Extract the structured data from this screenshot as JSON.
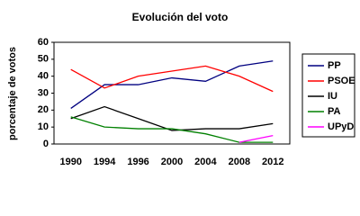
{
  "chart_data": {
    "type": "line",
    "title": "Evolución del voto",
    "y_label": "porcentaje de votos",
    "categories": [
      "1990",
      "1994",
      "1996",
      "2000",
      "2004",
      "2008",
      "2012"
    ],
    "series": [
      {
        "name": "PP",
        "color": "#000080",
        "values": [
          21,
          35,
          35,
          39,
          37,
          46,
          49
        ]
      },
      {
        "name": "PSOE",
        "color": "#ff0000",
        "values": [
          44,
          33,
          40,
          43,
          46,
          40,
          31
        ]
      },
      {
        "name": "IU",
        "color": "#000000",
        "values": [
          15,
          22,
          15,
          8,
          9,
          9,
          12
        ]
      },
      {
        "name": "PA",
        "color": "#008000",
        "values": [
          16,
          10,
          9,
          9,
          6,
          1,
          1
        ]
      },
      {
        "name": "UPyD",
        "color": "#ff00ff",
        "values": [
          null,
          null,
          null,
          null,
          null,
          1,
          5
        ]
      }
    ],
    "ylim": [
      0,
      60
    ],
    "yticks": [
      0,
      10,
      20,
      30,
      40,
      50,
      60
    ],
    "grid": false,
    "legend": "right"
  }
}
